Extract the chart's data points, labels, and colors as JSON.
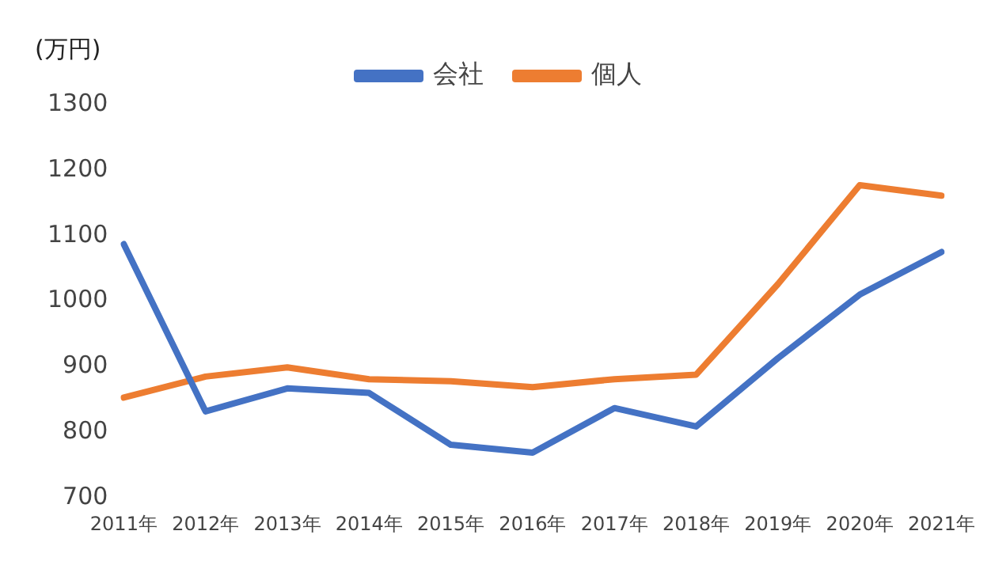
{
  "chart_data": {
    "type": "line",
    "ylabel": "(万円)",
    "categories": [
      "2011年",
      "2012年",
      "2013年",
      "2014年",
      "2015年",
      "2016年",
      "2017年",
      "2018年",
      "2019年",
      "2020年",
      "2021年"
    ],
    "series": [
      {
        "name": "会社",
        "color": "#4472c4",
        "values": [
          1087,
          832,
          867,
          860,
          781,
          769,
          837,
          809,
          913,
          1010,
          1075
        ]
      },
      {
        "name": "個人",
        "color": "#ed7d31",
        "values": [
          853,
          885,
          899,
          881,
          878,
          869,
          881,
          888,
          1026,
          1177,
          1161
        ]
      }
    ],
    "ylim": [
      700,
      1300
    ],
    "yticks": [
      700,
      800,
      900,
      1000,
      1100,
      1200,
      1300
    ],
    "grid": false,
    "legend": "top",
    "marker": "none"
  }
}
